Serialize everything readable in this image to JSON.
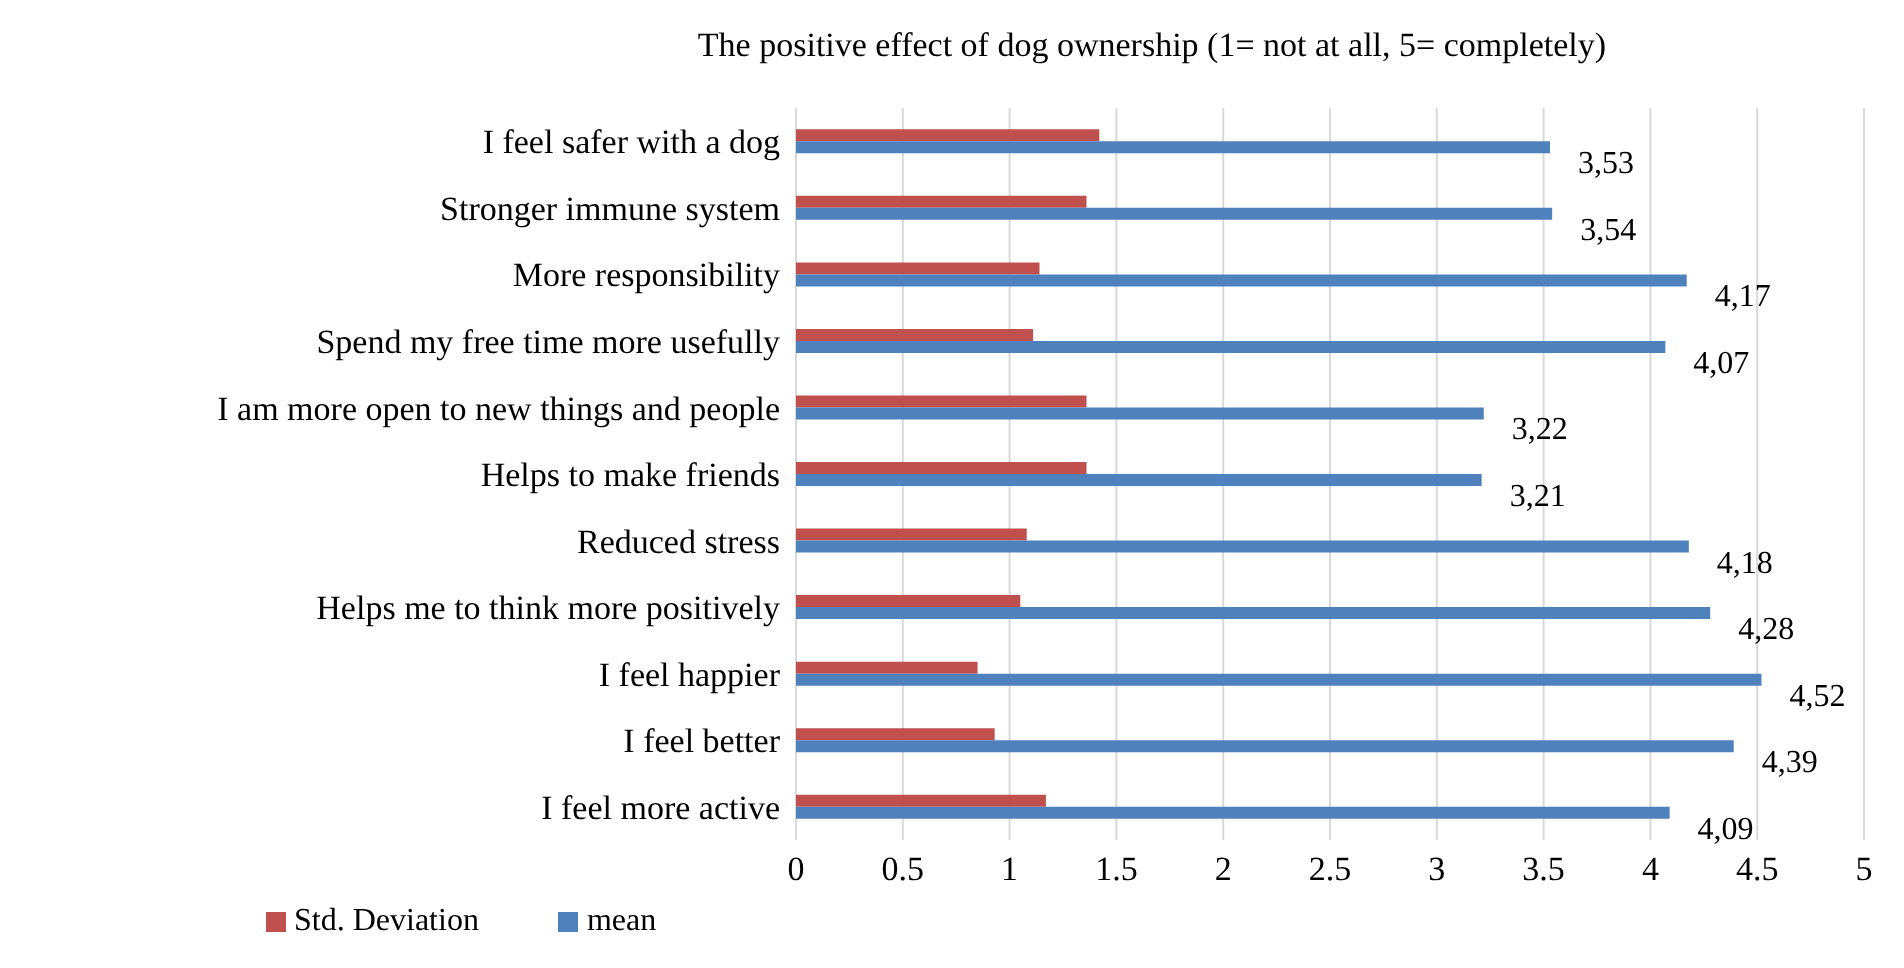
{
  "chart_data": {
    "type": "bar",
    "orientation": "horizontal",
    "title": "The positive effect of dog ownership (1= not at all, 5= completely)",
    "categories": [
      "I feel safer with a dog",
      "Stronger immune system",
      "More responsibility",
      "Spend my free time more usefully",
      "I am more open to new things and people",
      "Helps to make friends",
      "Reduced stress",
      "Helps me to think more positively",
      "I feel happier",
      "I feel better",
      "I feel more active"
    ],
    "series": [
      {
        "name": "Std. Deviation",
        "color": "#c0504d",
        "values": [
          1.42,
          1.36,
          1.14,
          1.11,
          1.36,
          1.36,
          1.08,
          1.05,
          0.85,
          0.93,
          1.17
        ]
      },
      {
        "name": "mean",
        "color": "#4f81bd",
        "values": [
          3.53,
          3.54,
          4.17,
          4.07,
          3.22,
          3.21,
          4.18,
          4.28,
          4.52,
          4.39,
          4.09
        ],
        "value_labels": [
          "3,53",
          "3,54",
          "4,17",
          "4,07",
          "3,22",
          "3,21",
          "4,18",
          "4,28",
          "4,52",
          "4,39",
          "4,09"
        ]
      }
    ],
    "xlim": [
      0,
      5
    ],
    "xticks": [
      0,
      0.5,
      1,
      1.5,
      2,
      2.5,
      3,
      3.5,
      4,
      4.5,
      5
    ],
    "grid": "x",
    "legend": "bottom left"
  }
}
